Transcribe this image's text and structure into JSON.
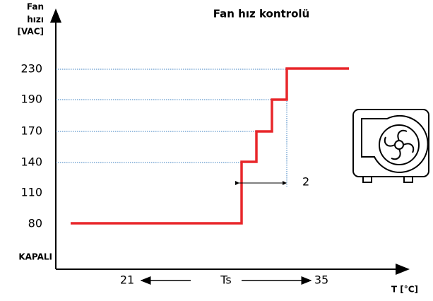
{
  "title": "Fan hız kontrolü",
  "y_axis": {
    "label_lines": [
      "Fan",
      "hızı",
      "[VAC]"
    ],
    "levels": [
      "230",
      "190",
      "170",
      "140",
      "110",
      "80"
    ],
    "off_label": "KAPALI"
  },
  "x_axis": {
    "label": "T [°C]",
    "start": "21",
    "setpoint": "Ts",
    "end": "35"
  },
  "hysteresis": "2"
}
